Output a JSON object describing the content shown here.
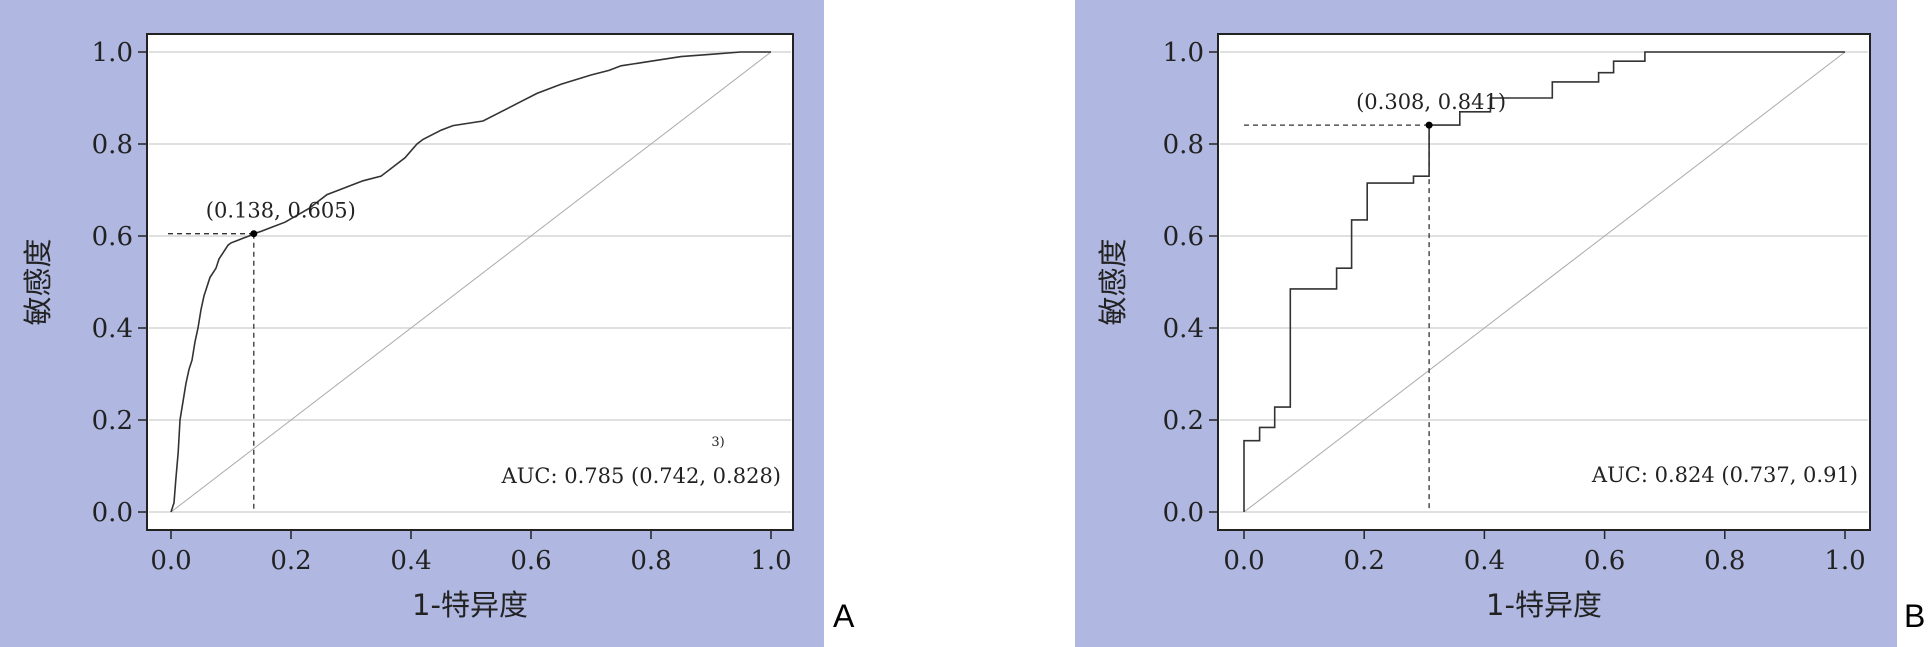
{
  "panel_labels": {
    "a": "A",
    "b": "B"
  },
  "colors": {
    "panel_bg": "#b0b8e2",
    "plot_bg": "#ffffff",
    "curve": "#333333",
    "grid": "#d6d6d6",
    "diagonal": "#aaaaaa"
  },
  "chart_data": [
    {
      "type": "line",
      "panel": "A",
      "xlabel": "1-特异度",
      "ylabel": "敏感度",
      "xlim": [
        0,
        1
      ],
      "ylim": [
        0,
        1
      ],
      "xticks": [
        "0.0",
        "0.2",
        "0.4",
        "0.6",
        "0.8",
        "1.0"
      ],
      "yticks": [
        "0.0",
        "0.2",
        "0.4",
        "0.6",
        "0.8",
        "1.0"
      ],
      "grid": "horizontal",
      "reference_line": "diagonal",
      "cutoff": {
        "x": 0.138,
        "y": 0.605,
        "label": "(0.138, 0.605)"
      },
      "auc_label": "AUC: 0.785 (0.742, 0.828)",
      "stray_text": "3)",
      "series": [
        {
          "x": [
            0.0,
            0.005,
            0.008,
            0.012,
            0.015,
            0.02,
            0.025,
            0.03,
            0.035,
            0.04,
            0.045,
            0.05,
            0.055,
            0.06,
            0.065,
            0.07,
            0.075,
            0.08,
            0.085,
            0.09,
            0.095,
            0.1,
            0.11,
            0.12,
            0.13,
            0.138,
            0.15,
            0.17,
            0.19,
            0.21,
            0.23,
            0.26,
            0.28,
            0.3,
            0.32,
            0.35,
            0.37,
            0.39,
            0.41,
            0.42,
            0.45,
            0.47,
            0.52,
            0.55,
            0.58,
            0.61,
            0.65,
            0.7,
            0.73,
            0.75,
            0.8,
            0.85,
            0.9,
            0.95,
            1.0
          ],
          "y": [
            0.0,
            0.02,
            0.07,
            0.13,
            0.2,
            0.24,
            0.28,
            0.31,
            0.33,
            0.37,
            0.4,
            0.44,
            0.47,
            0.49,
            0.51,
            0.52,
            0.53,
            0.55,
            0.56,
            0.57,
            0.58,
            0.585,
            0.59,
            0.595,
            0.6,
            0.605,
            0.61,
            0.62,
            0.63,
            0.645,
            0.66,
            0.69,
            0.7,
            0.71,
            0.72,
            0.73,
            0.75,
            0.77,
            0.8,
            0.81,
            0.83,
            0.84,
            0.85,
            0.87,
            0.89,
            0.91,
            0.93,
            0.95,
            0.96,
            0.97,
            0.98,
            0.99,
            0.995,
            1.0,
            1.0
          ]
        }
      ]
    },
    {
      "type": "line",
      "panel": "B",
      "xlabel": "1-特异度",
      "ylabel": "敏感度",
      "xlim": [
        0,
        1
      ],
      "ylim": [
        0,
        1
      ],
      "xticks": [
        "0.0",
        "0.2",
        "0.4",
        "0.6",
        "0.8",
        "1.0"
      ],
      "yticks": [
        "0.0",
        "0.2",
        "0.4",
        "0.6",
        "0.8",
        "1.0"
      ],
      "grid": "horizontal",
      "reference_line": "diagonal",
      "cutoff": {
        "x": 0.308,
        "y": 0.841,
        "label": "(0.308, 0.841)"
      },
      "auc_label": "AUC: 0.824 (0.737, 0.91)",
      "series": [
        {
          "x": [
            0.0,
            0.0,
            0.026,
            0.026,
            0.051,
            0.051,
            0.077,
            0.077,
            0.154,
            0.154,
            0.179,
            0.179,
            0.205,
            0.205,
            0.282,
            0.282,
            0.308,
            0.308,
            0.359,
            0.359,
            0.41,
            0.41,
            0.513,
            0.513,
            0.59,
            0.59,
            0.615,
            0.615,
            0.667,
            0.667,
            1.0
          ],
          "y": [
            0.0,
            0.155,
            0.155,
            0.184,
            0.184,
            0.228,
            0.228,
            0.485,
            0.485,
            0.53,
            0.53,
            0.635,
            0.635,
            0.715,
            0.715,
            0.73,
            0.73,
            0.841,
            0.841,
            0.87,
            0.87,
            0.9,
            0.9,
            0.935,
            0.935,
            0.955,
            0.955,
            0.98,
            0.98,
            1.0,
            1.0
          ]
        }
      ]
    }
  ]
}
